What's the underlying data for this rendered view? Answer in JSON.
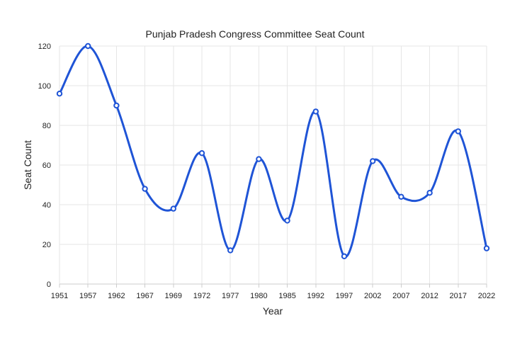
{
  "chart_data": {
    "type": "line",
    "title": "Punjab Pradesh Congress Committee Seat Count",
    "xlabel": "Year",
    "ylabel": "Seat Count",
    "categories": [
      "1951",
      "1957",
      "1962",
      "1967",
      "1969",
      "1972",
      "1977",
      "1980",
      "1985",
      "1992",
      "1997",
      "2002",
      "2007",
      "2012",
      "2017",
      "2022"
    ],
    "series": [
      {
        "values": [
          96,
          120,
          90,
          48,
          38,
          66,
          17,
          63,
          32,
          87,
          14,
          62,
          44,
          46,
          77,
          18
        ],
        "color": "#1f54d6"
      }
    ],
    "ylim": [
      0,
      120
    ],
    "yticks": [
      0,
      20,
      40,
      60,
      80,
      100,
      120
    ],
    "grid": true,
    "smooth": true,
    "legend": "none"
  }
}
